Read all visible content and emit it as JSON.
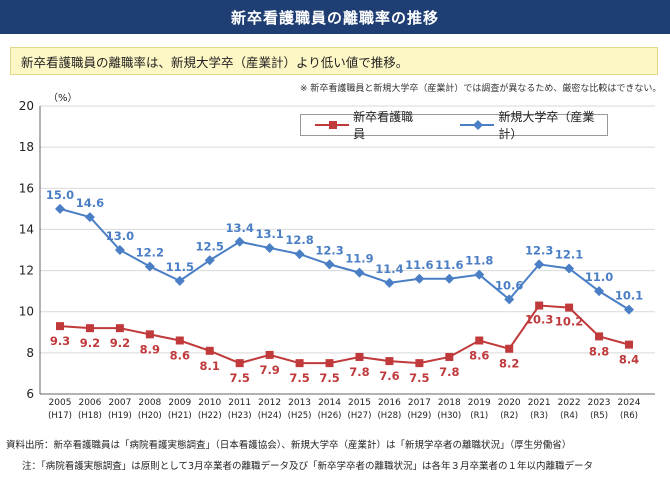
{
  "header": {
    "title": "新卒看護職員の離職率の推移"
  },
  "summary": "新卒看護職員の離職率は、新規大学卒（産業計）より低い値で推移。",
  "caveat": "※ 新卒看護職員と新規大学卒（産業計）では調査が異なるため、厳密な比較はできない。",
  "footer": {
    "source": "資料出所：新卒看護職員は「病院看護実態調査」（日本看護協会）、新規大学卒（産業計）は「新規学卒者の離職状況」（厚生労働省）",
    "note": "注：「病院看護実態調査」は原則として3月卒業者の離職データ及び「新卒学卒者の離職状況」は各年３月卒業者の１年以内離職データ"
  },
  "colors": {
    "header_bg": "#1f3e74",
    "nurse_series": "#c0393b",
    "univ_series": "#4a7ec5"
  },
  "chart_data": {
    "type": "line",
    "ylabel": "（%）",
    "ylim": [
      6,
      20
    ],
    "yticks": [
      6,
      8,
      10,
      12,
      14,
      16,
      18,
      20
    ],
    "grid": true,
    "legend_position": "top-right",
    "categories": [
      "2005",
      "2006",
      "2007",
      "2008",
      "2009",
      "2010",
      "2011",
      "2012",
      "2013",
      "2014",
      "2015",
      "2016",
      "2017",
      "2018",
      "2019",
      "2020",
      "2021",
      "2022",
      "2023",
      "2024"
    ],
    "categories_sub": [
      "(H17)",
      "(H18)",
      "(H19)",
      "(H20)",
      "(H21)",
      "(H22)",
      "(H23)",
      "(H24)",
      "(H25)",
      "(H26)",
      "(H27)",
      "(H28)",
      "(H29)",
      "(H30)",
      "(R1)",
      "(R2)",
      "(R3)",
      "(R4)",
      "(R5)",
      "(R6)"
    ],
    "series": [
      {
        "name": "新卒看護職員",
        "marker": "square",
        "values": [
          9.3,
          9.2,
          9.2,
          8.9,
          8.6,
          8.1,
          7.5,
          7.9,
          7.5,
          7.5,
          7.8,
          7.6,
          7.5,
          7.8,
          8.6,
          8.2,
          10.3,
          10.2,
          8.8,
          8.4
        ],
        "labels": [
          "9.3",
          "9.2",
          "9.2",
          "8.9",
          "8.6",
          "8.1",
          "7.5",
          "7.9",
          "7.5",
          "7.5",
          "7.8",
          "7.6",
          "7.5",
          "7.8",
          "8.6",
          "8.2",
          "10.3",
          "10.2",
          "8.8",
          "8.4"
        ]
      },
      {
        "name": "新規大学卒（産業計）",
        "marker": "diamond",
        "values": [
          15.0,
          14.6,
          13.0,
          12.2,
          11.5,
          12.5,
          13.4,
          13.1,
          12.8,
          12.3,
          11.9,
          11.4,
          11.6,
          11.6,
          11.8,
          10.6,
          12.3,
          12.1,
          11.0,
          10.1
        ],
        "labels": [
          "15.0",
          "14.6",
          "13.0",
          "12.2",
          "11.5",
          "12.5",
          "13.4",
          "13.1",
          "12.8",
          "12.3",
          "11.9",
          "11.4",
          "11.6",
          "11.6",
          "11.8",
          "10.6",
          "12.3",
          "12.1",
          "11.0",
          "10.1"
        ]
      }
    ]
  }
}
